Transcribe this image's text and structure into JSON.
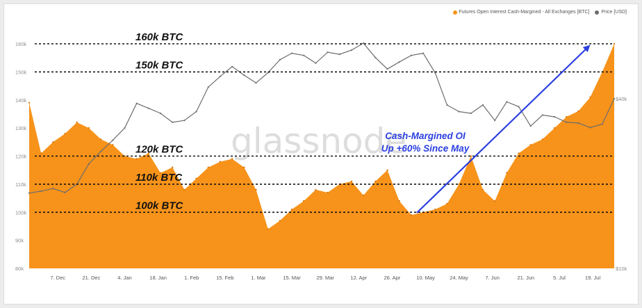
{
  "legend": {
    "series1_label": "Futures Open Interest Cash-Margined - All Exchanges [BTC]",
    "series1_color": "#f7931a",
    "series2_label": "Price [USD]",
    "series2_color": "#6d6d6d"
  },
  "watermark": "glassnode",
  "annotation": {
    "line1": "Cash-Margined OI",
    "line2": "Up +60% Since May",
    "color": "#2b3fe0"
  },
  "chart_data": {
    "type": "area",
    "x_tick_labels": [
      "7. Dec",
      "21. Dec",
      "4. Jan",
      "18. Jan",
      "1. Feb",
      "15. Feb",
      "1. Mar",
      "15. Mar",
      "29. Mar",
      "12. Apr",
      "26. Apr",
      "10. May",
      "24. May",
      "7. Jun",
      "21. Jun",
      "5. Jul",
      "19. Jul"
    ],
    "y_left": {
      "range": [
        80000,
        160000
      ],
      "ticks": [
        "80k",
        "90k",
        "100k",
        "110k",
        "120k",
        "130k",
        "140k",
        "150k",
        "160k"
      ]
    },
    "y_right": {
      "scale": "log",
      "ticks": [
        "$10k",
        "$40k"
      ]
    },
    "reference_lines": [
      {
        "value": 160000,
        "label": "160k BTC"
      },
      {
        "value": 150000,
        "label": "150k BTC"
      },
      {
        "value": 120000,
        "label": "120k BTC"
      },
      {
        "value": 110000,
        "label": "110k BTC"
      },
      {
        "value": 100000,
        "label": "100k BTC"
      }
    ],
    "series": [
      {
        "name": "Futures Open Interest Cash-Margined - All Exchanges [BTC]",
        "axis": "left",
        "x": [
          "2020-11-25",
          "2020-11-30",
          "2020-12-05",
          "2020-12-10",
          "2020-12-15",
          "2020-12-20",
          "2020-12-25",
          "2020-12-30",
          "2021-01-04",
          "2021-01-09",
          "2021-01-14",
          "2021-01-19",
          "2021-01-24",
          "2021-01-29",
          "2021-02-03",
          "2021-02-08",
          "2021-02-13",
          "2021-02-18",
          "2021-02-23",
          "2021-02-28",
          "2021-03-05",
          "2021-03-10",
          "2021-03-15",
          "2021-03-20",
          "2021-03-25",
          "2021-03-30",
          "2021-04-04",
          "2021-04-09",
          "2021-04-14",
          "2021-04-19",
          "2021-04-24",
          "2021-04-29",
          "2021-05-04",
          "2021-05-09",
          "2021-05-14",
          "2021-05-19",
          "2021-05-24",
          "2021-05-29",
          "2021-06-03",
          "2021-06-08",
          "2021-06-13",
          "2021-06-18",
          "2021-06-23",
          "2021-06-28",
          "2021-07-03",
          "2021-07-08",
          "2021-07-13",
          "2021-07-18",
          "2021-07-23",
          "2021-07-28"
        ],
        "values": [
          139000,
          121000,
          125000,
          128000,
          132000,
          130000,
          126000,
          124000,
          120000,
          119000,
          121000,
          114000,
          116000,
          108000,
          112000,
          116000,
          118000,
          119000,
          116000,
          108000,
          94000,
          97000,
          101000,
          104000,
          108000,
          107000,
          110000,
          111000,
          106000,
          111000,
          115000,
          104000,
          99000,
          100000,
          101000,
          103000,
          110000,
          120000,
          108000,
          104000,
          114000,
          121000,
          124000,
          126000,
          130000,
          134000,
          136000,
          141000,
          150000,
          160000
        ]
      },
      {
        "name": "Price [USD]",
        "axis": "right",
        "x": [
          "2020-11-25",
          "2020-11-30",
          "2020-12-05",
          "2020-12-10",
          "2020-12-15",
          "2020-12-20",
          "2020-12-25",
          "2020-12-30",
          "2021-01-04",
          "2021-01-09",
          "2021-01-14",
          "2021-01-19",
          "2021-01-24",
          "2021-01-29",
          "2021-02-03",
          "2021-02-08",
          "2021-02-13",
          "2021-02-18",
          "2021-02-23",
          "2021-02-28",
          "2021-03-05",
          "2021-03-10",
          "2021-03-15",
          "2021-03-20",
          "2021-03-25",
          "2021-03-30",
          "2021-04-04",
          "2021-04-09",
          "2021-04-14",
          "2021-04-19",
          "2021-04-24",
          "2021-04-29",
          "2021-05-04",
          "2021-05-09",
          "2021-05-14",
          "2021-05-19",
          "2021-05-24",
          "2021-05-29",
          "2021-06-03",
          "2021-06-08",
          "2021-06-13",
          "2021-06-18",
          "2021-06-23",
          "2021-06-28",
          "2021-07-03",
          "2021-07-08",
          "2021-07-13",
          "2021-07-18",
          "2021-07-23",
          "2021-07-28"
        ],
        "values": [
          18500,
          18800,
          19200,
          18600,
          19900,
          23500,
          26000,
          28500,
          31500,
          38500,
          37000,
          35500,
          33000,
          33500,
          36000,
          44000,
          48000,
          52000,
          48500,
          45500,
          49500,
          55000,
          58000,
          57000,
          53500,
          58500,
          57500,
          59500,
          63000,
          56000,
          51000,
          54000,
          57000,
          58000,
          49500,
          38000,
          36000,
          35500,
          38000,
          33500,
          39000,
          37500,
          32000,
          35000,
          34500,
          33000,
          32800,
          31600,
          32500,
          40000
        ]
      }
    ]
  }
}
